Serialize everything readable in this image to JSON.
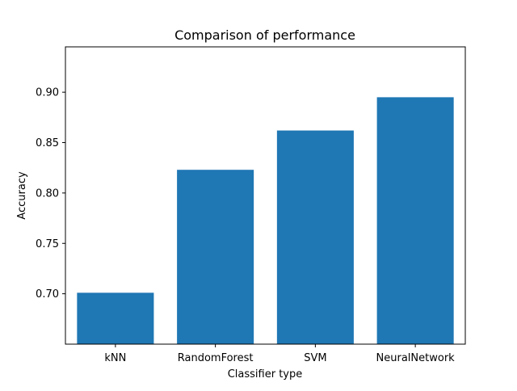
{
  "chart_data": {
    "type": "bar",
    "title": "Comparison of performance",
    "xlabel": "Classifier type",
    "ylabel": "Accuracy",
    "categories": [
      "kNN",
      "RandomForest",
      "SVM",
      "NeuralNetwork"
    ],
    "values": [
      0.701,
      0.823,
      0.862,
      0.895
    ],
    "ylim": [
      0.65,
      0.945
    ],
    "yticks": [
      0.7,
      0.75,
      0.8,
      0.85,
      0.9
    ],
    "ytick_labels": [
      "0.70",
      "0.75",
      "0.80",
      "0.85",
      "0.90"
    ],
    "bar_color": "#1f77b4",
    "grid": false,
    "legend": "none"
  }
}
